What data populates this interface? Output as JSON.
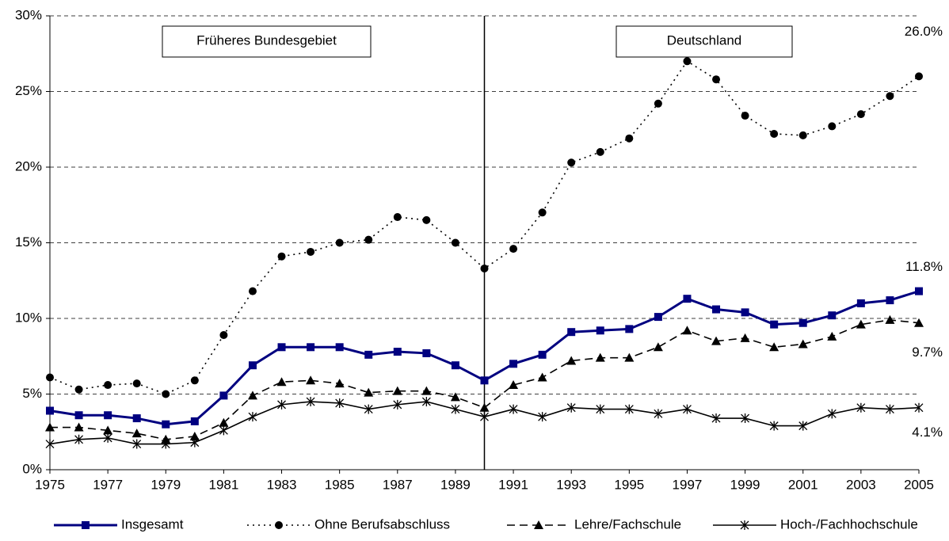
{
  "chart_data": {
    "type": "line",
    "annotations": [
      "Früheres Bundesgebiet",
      "Deutschland"
    ],
    "divider_x": 1990,
    "x": [
      1975,
      1976,
      1977,
      1978,
      1979,
      1980,
      1981,
      1982,
      1983,
      1984,
      1985,
      1986,
      1987,
      1988,
      1989,
      1990,
      1991,
      1992,
      1993,
      1994,
      1995,
      1996,
      1997,
      1998,
      1999,
      2000,
      2001,
      2002,
      2003,
      2004,
      2005
    ],
    "xlim": [
      1975,
      2005
    ],
    "xticks": [
      1975,
      1977,
      1979,
      1981,
      1983,
      1985,
      1987,
      1989,
      1991,
      1993,
      1995,
      1997,
      1999,
      2001,
      2003,
      2005
    ],
    "ylim": [
      0,
      30
    ],
    "yticks": [
      {
        "value": 0,
        "label": "0%"
      },
      {
        "value": 5,
        "label": "5%"
      },
      {
        "value": 10,
        "label": "10%"
      },
      {
        "value": 15,
        "label": "15%"
      },
      {
        "value": 20,
        "label": "20%"
      },
      {
        "value": 25,
        "label": "25%"
      },
      {
        "value": 30,
        "label": "30%"
      }
    ],
    "grid": true,
    "legend": "bottom",
    "series": [
      {
        "name": "Insgesamt",
        "color": "#000080",
        "dash": "solid",
        "marker": "square",
        "last_label": "11.8%",
        "values": [
          3.9,
          3.6,
          3.6,
          3.4,
          3.0,
          3.2,
          4.9,
          6.9,
          8.1,
          8.1,
          8.1,
          7.6,
          7.8,
          7.7,
          6.9,
          5.9,
          7.0,
          7.6,
          9.1,
          9.2,
          9.3,
          10.1,
          11.3,
          10.6,
          10.4,
          9.6,
          9.7,
          10.2,
          11.0,
          11.2,
          11.8
        ]
      },
      {
        "name": "Ohne Berufsabschluss",
        "color": "#000000",
        "dash": "dotted",
        "marker": "circle",
        "last_label": "26.0%",
        "values": [
          6.1,
          5.3,
          5.6,
          5.7,
          5.0,
          5.9,
          8.9,
          11.8,
          14.1,
          14.4,
          15.0,
          15.2,
          16.7,
          16.5,
          15.0,
          13.3,
          14.6,
          17.0,
          20.3,
          21.0,
          21.9,
          24.2,
          27.0,
          25.8,
          23.4,
          22.2,
          22.1,
          22.7,
          23.5,
          24.7,
          26.0
        ]
      },
      {
        "name": "Lehre/Fachschule",
        "color": "#000000",
        "dash": "dashed",
        "marker": "triangle",
        "last_label": "9.7%",
        "values": [
          2.8,
          2.8,
          2.6,
          2.4,
          2.0,
          2.2,
          3.1,
          4.9,
          5.8,
          5.9,
          5.7,
          5.1,
          5.2,
          5.2,
          4.8,
          4.1,
          5.6,
          6.1,
          7.2,
          7.4,
          7.4,
          8.1,
          9.2,
          8.5,
          8.7,
          8.1,
          8.3,
          8.8,
          9.6,
          9.9,
          9.7
        ]
      },
      {
        "name": "Hoch-/Fachhochschule",
        "color": "#000000",
        "dash": "solid",
        "marker": "star",
        "last_label": "4.1%",
        "values": [
          1.7,
          2.0,
          2.1,
          1.7,
          1.7,
          1.8,
          2.6,
          3.5,
          4.3,
          4.5,
          4.4,
          4.0,
          4.3,
          4.5,
          4.0,
          3.5,
          4.0,
          3.5,
          4.1,
          4.0,
          4.0,
          3.7,
          4.0,
          3.4,
          3.4,
          2.9,
          2.9,
          3.7,
          4.1,
          4.0,
          4.1
        ]
      }
    ]
  }
}
